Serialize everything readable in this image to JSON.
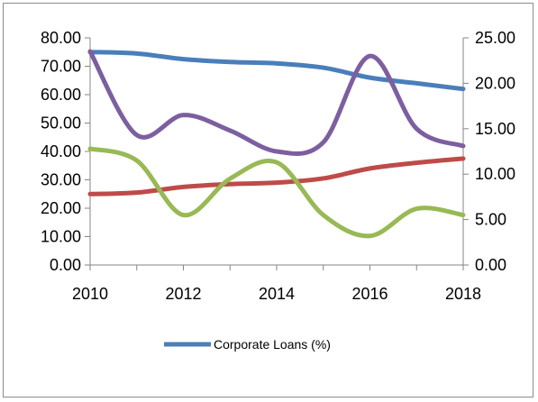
{
  "chart_data": {
    "type": "line",
    "x": [
      2010,
      2011,
      2012,
      2013,
      2014,
      2015,
      2016,
      2017,
      2018
    ],
    "x_ticks": [
      "2010",
      "2012",
      "2014",
      "2016",
      "2018"
    ],
    "x_range": [
      2010,
      2018
    ],
    "y_left_range": [
      0,
      80
    ],
    "y_left_ticks": [
      "0.00",
      "10.00",
      "20.00",
      "30.00",
      "40.00",
      "50.00",
      "60.00",
      "70.00",
      "80.00"
    ],
    "y_right_range": [
      0,
      25
    ],
    "y_right_ticks": [
      "0.00",
      "5.00",
      "10.00",
      "15.00",
      "20.00",
      "25.00"
    ],
    "grid": false,
    "legend_position": "bottom",
    "series": [
      {
        "name": "Corporate Loans (%)",
        "axis": "left",
        "color": "#4a7ebb",
        "values": [
          75,
          74.5,
          72.5,
          71.5,
          71,
          69.5,
          66,
          64,
          62
        ]
      },
      {
        "axis": "left",
        "color": "#be4b48",
        "values": [
          25,
          25.5,
          27.5,
          28.5,
          29,
          30.5,
          34,
          36,
          37.5
        ]
      },
      {
        "axis": "right",
        "color": "#98b954",
        "values": [
          12.8,
          11.5,
          5.5,
          9.5,
          11.3,
          5.5,
          3.2,
          6.2,
          5.5
        ]
      },
      {
        "axis": "right",
        "color": "#7d5fa0",
        "values": [
          23.5,
          14.3,
          16.5,
          14.8,
          12.5,
          13.5,
          23.0,
          15.0,
          13.1
        ]
      }
    ]
  }
}
